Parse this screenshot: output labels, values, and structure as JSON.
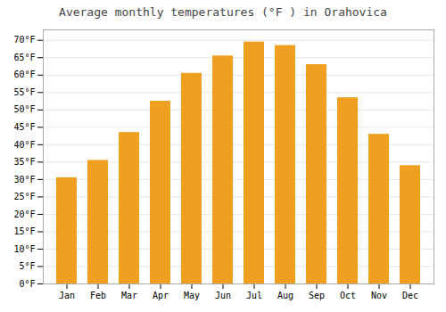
{
  "chart_data": {
    "type": "bar",
    "title": "Average monthly temperatures (°F ) in Orahovica",
    "categories": [
      "Jan",
      "Feb",
      "Mar",
      "Apr",
      "May",
      "Jun",
      "Jul",
      "Aug",
      "Sep",
      "Oct",
      "Nov",
      "Dec"
    ],
    "values": [
      30.5,
      35.5,
      43.5,
      52.5,
      60.5,
      65.5,
      69.5,
      68.5,
      63.0,
      53.5,
      43.0,
      34.0
    ],
    "color": "#F0A020",
    "ylim": [
      0,
      73
    ],
    "yticks": [
      {
        "value": 0,
        "label": "0°F"
      },
      {
        "value": 5,
        "label": "5°F"
      },
      {
        "value": 10,
        "label": "10°F"
      },
      {
        "value": 15,
        "label": "15°F"
      },
      {
        "value": 20,
        "label": "20°F"
      },
      {
        "value": 25,
        "label": "25°F"
      },
      {
        "value": 30,
        "label": "30°F"
      },
      {
        "value": 35,
        "label": "35°F"
      },
      {
        "value": 40,
        "label": "40°F"
      },
      {
        "value": 45,
        "label": "45°F"
      },
      {
        "value": 50,
        "label": "50°F"
      },
      {
        "value": 55,
        "label": "55°F"
      },
      {
        "value": 60,
        "label": "60°F"
      },
      {
        "value": 65,
        "label": "65°F"
      },
      {
        "value": 70,
        "label": "70°F"
      }
    ],
    "grid": true
  }
}
